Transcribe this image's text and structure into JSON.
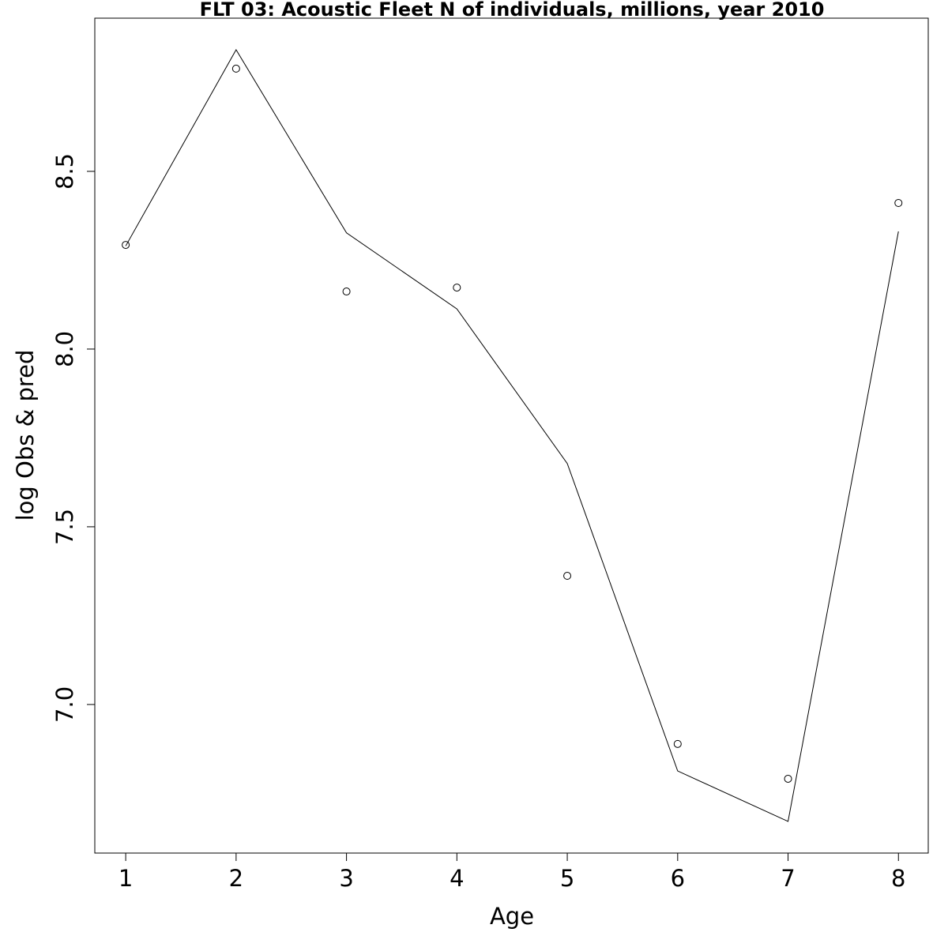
{
  "chart_data": {
    "type": "line",
    "title": "FLT 03: Acoustic Fleet  N of individuals, millions, year 2010",
    "x_label": "Age",
    "y_label": "log Obs & pred",
    "x": [
      1,
      2,
      3,
      4,
      5,
      6,
      7,
      8
    ],
    "series": [
      {
        "mark": "points",
        "color": "#000000",
        "values": [
          8.293,
          8.789,
          8.162,
          8.173,
          7.362,
          6.889,
          6.791,
          8.411
        ]
      },
      {
        "mark": "line",
        "color": "#000000",
        "values": [
          8.29,
          8.842,
          8.327,
          8.113,
          7.678,
          6.813,
          6.671,
          8.331
        ]
      }
    ],
    "xlim": [
      0.72,
      8.27
    ],
    "xticks": [
      1,
      2,
      3,
      4,
      5,
      6,
      7,
      8
    ],
    "ylim": [
      6.582,
      8.931
    ],
    "yticks": [
      {
        "value": 7,
        "label": "7.0"
      },
      7.5,
      {
        "value": 8,
        "label": "8.0"
      },
      8.5
    ],
    "grid": false
  }
}
